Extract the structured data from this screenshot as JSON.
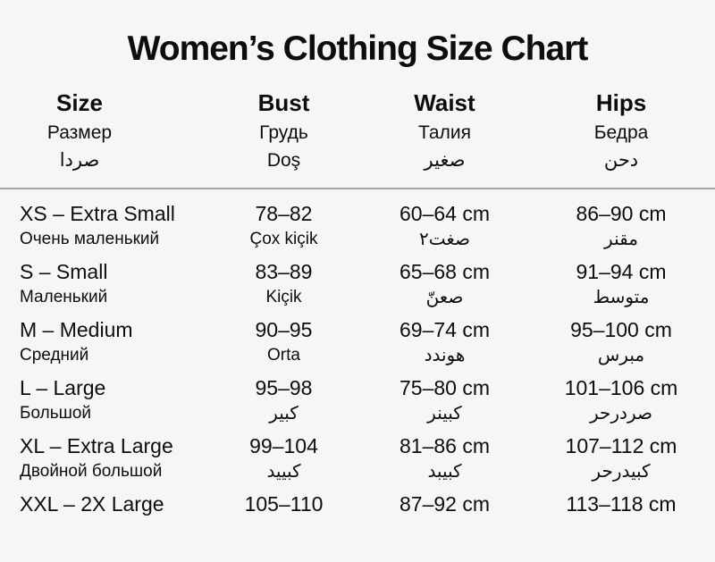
{
  "title": "Women’s Clothing Size Chart",
  "colors": {
    "background": "#f6f6f5",
    "text": "#0d0d0d",
    "divider": "#a6a6a6"
  },
  "table": {
    "headers": {
      "size": {
        "en": "Size",
        "ru": "Размер",
        "third": "صردا"
      },
      "bust": {
        "en": "Bust",
        "ru": "Грудь",
        "third": "Doş"
      },
      "waist": {
        "en": "Waist",
        "ru": "Талия",
        "third": "صغير"
      },
      "hips": {
        "en": "Hips",
        "ru": "Бедра",
        "third": "دحن"
      }
    },
    "rows": [
      {
        "size": "XS – Extra Small",
        "size_sub": "Очень маленький",
        "bust": "78–82",
        "bust_sub": "Çox kiçik",
        "waist": "60–64 cm",
        "waist_sub": "صغت٢",
        "hips": "86–90 cm",
        "hips_sub": "مقنر"
      },
      {
        "size": "S – Small",
        "size_sub": "Маленький",
        "bust": "83–89",
        "bust_sub": "Kiçik",
        "waist": "65–68 cm",
        "waist_sub": "صعنّ",
        "hips": "91–94 cm",
        "hips_sub": "متوسط"
      },
      {
        "size": "M – Medium",
        "size_sub": "Средний",
        "bust": "90–95",
        "bust_sub": "Orta",
        "waist": "69–74 cm",
        "waist_sub": "هوندد",
        "hips": "95–100 cm",
        "hips_sub": "مبرس"
      },
      {
        "size": "L – Large",
        "size_sub": "Большой",
        "bust": "95–98",
        "bust_sub": "كبير",
        "waist": "75–80 cm",
        "waist_sub": "كبينر",
        "hips": "101–106 cm",
        "hips_sub": "صردرحر"
      },
      {
        "size": "XL – Extra Large",
        "size_sub": "Двойной большой",
        "bust": "99–104",
        "bust_sub": "كبييد",
        "waist": "81–86 cm",
        "waist_sub": "كبيبد",
        "hips": "107–112 cm",
        "hips_sub": "كبيدرحر"
      },
      {
        "size": "XXL – 2X Large",
        "size_sub": "",
        "bust": "105–110",
        "bust_sub": "",
        "waist": "87–92 cm",
        "waist_sub": "",
        "hips": "113–118 cm",
        "hips_sub": ""
      }
    ]
  }
}
